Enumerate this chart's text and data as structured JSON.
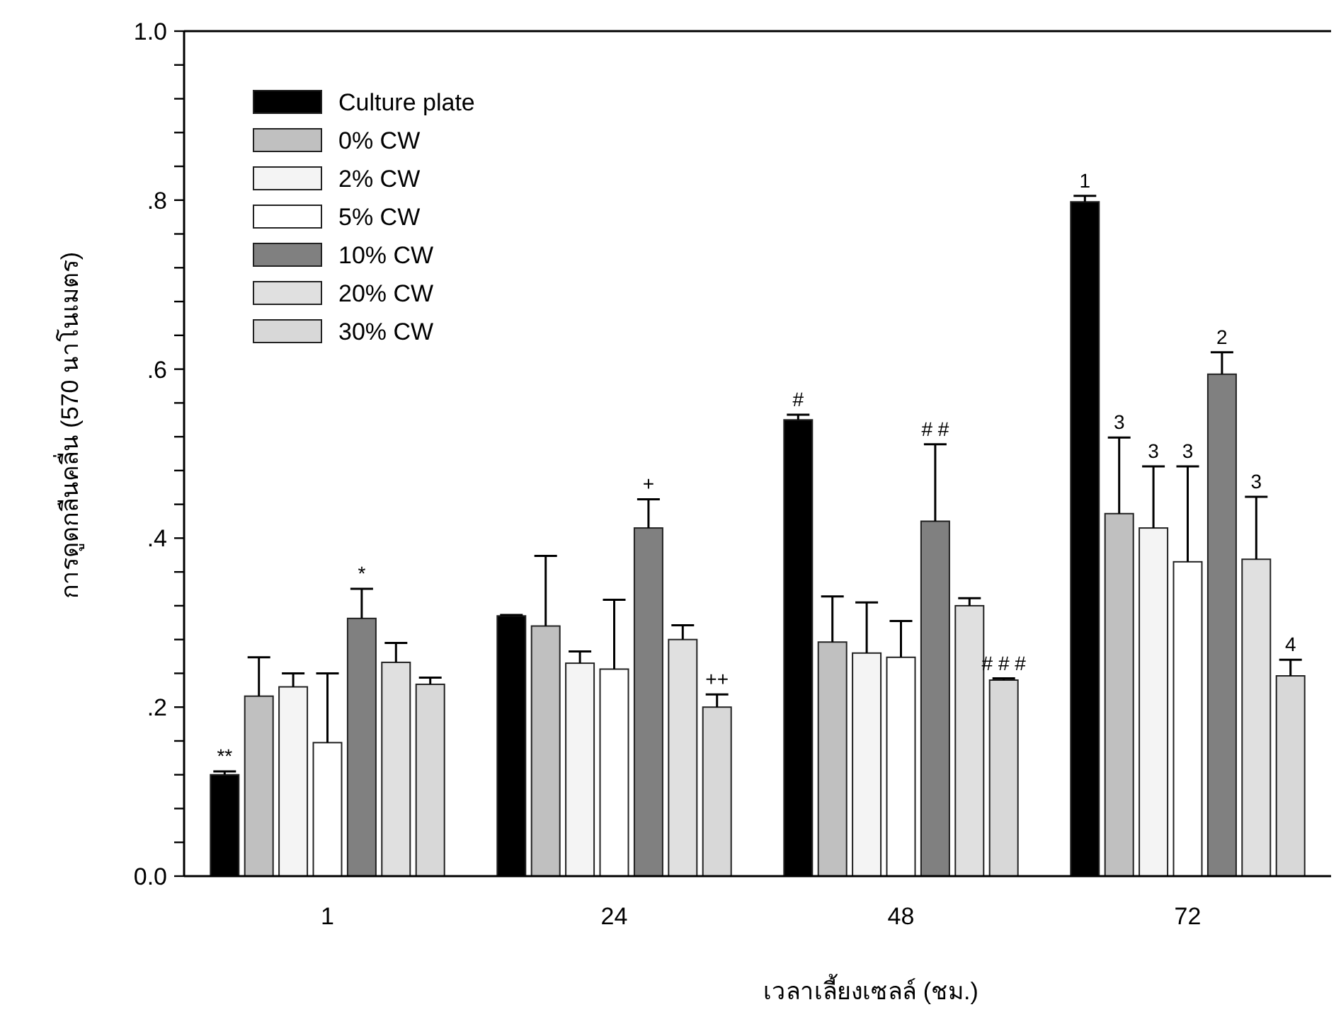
{
  "chart_data": {
    "type": "bar",
    "xlabel": "เวลาเลี้ยงเซลล์ (ชม.)",
    "ylabel": "การดูดกลืนคลื่น (570 นาโนเมตร)",
    "categories": [
      "1",
      "24",
      "48",
      "72"
    ],
    "series": [
      {
        "name": "Culture plate",
        "color": "#000000",
        "values": [
          0.12,
          0.308,
          0.54,
          0.798
        ],
        "errors": [
          [
            0.12,
            0.124
          ],
          [
            0.308,
            0.309
          ],
          [
            0.54,
            0.546
          ],
          [
            0.798,
            0.805
          ]
        ]
      },
      {
        "name": "0% CW",
        "color": "#c0c0c0",
        "values": [
          0.213,
          0.296,
          0.277,
          0.429
        ],
        "errors": [
          [
            0.213,
            0.259
          ],
          [
            0.296,
            0.379
          ],
          [
            0.277,
            0.331
          ],
          [
            0.429,
            0.519
          ]
        ]
      },
      {
        "name": "2% CW",
        "color": "#f4f4f4",
        "values": [
          0.224,
          0.252,
          0.264,
          0.412
        ],
        "errors": [
          [
            0.224,
            0.24
          ],
          [
            0.252,
            0.266
          ],
          [
            0.264,
            0.324
          ],
          [
            0.412,
            0.485
          ]
        ]
      },
      {
        "name": "5% CW",
        "color": "#ffffff",
        "values": [
          0.158,
          0.245,
          0.259,
          0.372
        ],
        "errors": [
          [
            0.158,
            0.24
          ],
          [
            0.245,
            0.327
          ],
          [
            0.259,
            0.302
          ],
          [
            0.372,
            0.485
          ]
        ]
      },
      {
        "name": "10% CW",
        "color": "#808080",
        "values": [
          0.305,
          0.412,
          0.42,
          0.594
        ],
        "errors": [
          [
            0.305,
            0.34
          ],
          [
            0.412,
            0.446
          ],
          [
            0.42,
            0.511
          ],
          [
            0.594,
            0.62
          ]
        ]
      },
      {
        "name": "20% CW",
        "color": "#e0e0e0",
        "values": [
          0.253,
          0.28,
          0.32,
          0.375
        ],
        "errors": [
          [
            0.253,
            0.276
          ],
          [
            0.28,
            0.297
          ],
          [
            0.32,
            0.329
          ],
          [
            0.375,
            0.449
          ]
        ]
      },
      {
        "name": "30% CW",
        "color": "#d8d8d8",
        "values": [
          0.227,
          0.2,
          0.232,
          0.237
        ],
        "errors": [
          [
            0.227,
            0.235
          ],
          [
            0.2,
            0.215
          ],
          [
            0.232,
            0.234
          ],
          [
            0.237,
            0.256
          ]
        ]
      }
    ],
    "ylim": [
      0,
      1.0
    ],
    "yticks": [
      {
        "value": 0,
        "label": "0.0"
      },
      {
        "value": 0.04,
        "label": null
      },
      {
        "value": 0.08,
        "label": null
      },
      {
        "value": 0.12,
        "label": null
      },
      {
        "value": 0.16,
        "label": null
      },
      {
        "value": 0.2,
        "label": ".2"
      },
      {
        "value": 0.24,
        "label": null
      },
      {
        "value": 0.28,
        "label": null
      },
      {
        "value": 0.32,
        "label": null
      },
      {
        "value": 0.36,
        "label": null
      },
      {
        "value": 0.4,
        "label": ".4"
      },
      {
        "value": 0.44,
        "label": null
      },
      {
        "value": 0.48,
        "label": null
      },
      {
        "value": 0.52,
        "label": null
      },
      {
        "value": 0.56,
        "label": null
      },
      {
        "value": 0.6,
        "label": ".6"
      },
      {
        "value": 0.64,
        "label": null
      },
      {
        "value": 0.68,
        "label": null
      },
      {
        "value": 0.72,
        "label": null
      },
      {
        "value": 0.76,
        "label": null
      },
      {
        "value": 0.8,
        "label": ".8"
      },
      {
        "value": 0.84,
        "label": null
      },
      {
        "value": 0.88,
        "label": null
      },
      {
        "value": 0.92,
        "label": null
      },
      {
        "value": 0.96,
        "label": null
      },
      {
        "value": 1.0,
        "label": "1.0"
      }
    ],
    "annotations": [
      "**",
      "*",
      "+",
      "++",
      "#",
      "# #",
      "# # #",
      "1",
      "3",
      "3",
      "3",
      "2",
      "3",
      "4"
    ],
    "legend": "top left",
    "grid": false
  }
}
